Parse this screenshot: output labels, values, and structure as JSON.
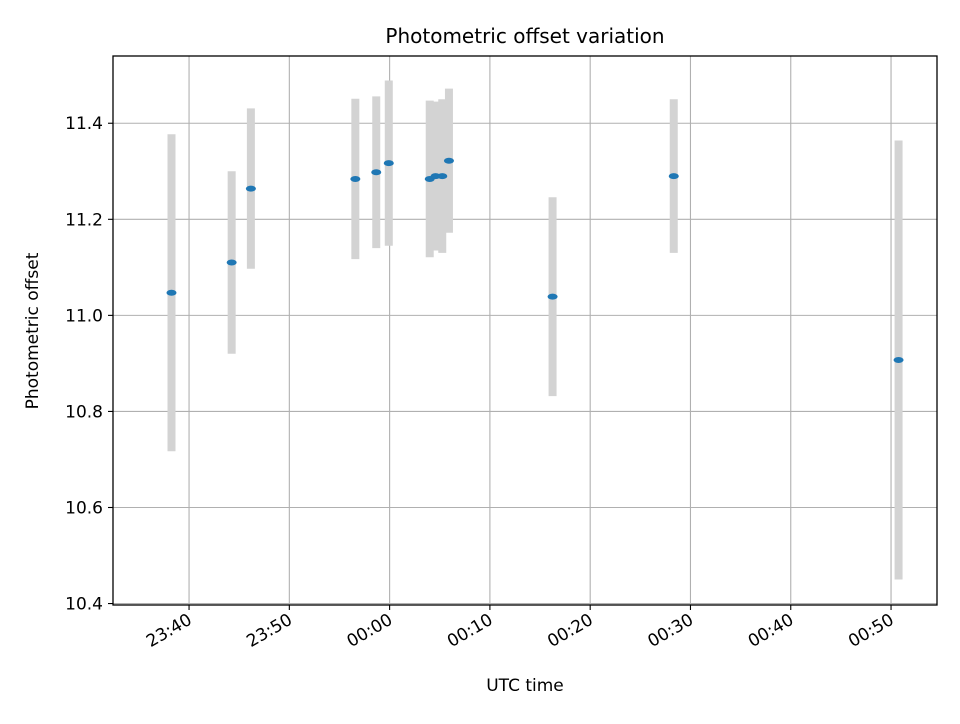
{
  "chart_data": {
    "type": "scatter",
    "title": "Photometric offset variation",
    "xlabel": "UTC time",
    "ylabel": "Photometric offset",
    "x_axis_type": "time",
    "xlim": [
      "23:32:25",
      "00:54:35"
    ],
    "ylim": [
      10.397,
      11.54
    ],
    "grid": true,
    "x_ticks": [
      "23:40",
      "23:50",
      "00:00",
      "00:10",
      "00:20",
      "00:30",
      "00:40",
      "00:50"
    ],
    "y_ticks": [
      "10.4",
      "10.6",
      "10.8",
      "11.0",
      "11.2",
      "11.4"
    ],
    "colors": {
      "marker": "#1f77b4",
      "errorbar": "#d3d3d3",
      "grid": "#b0b0b0",
      "axes": "#000000"
    },
    "series": [
      {
        "points": [
          {
            "t": "23:38:15",
            "y": 11.047,
            "err": 0.33
          },
          {
            "t": "23:44:15",
            "y": 11.11,
            "err": 0.19
          },
          {
            "t": "23:46:10",
            "y": 11.264,
            "err": 0.167
          },
          {
            "t": "23:56:35",
            "y": 11.284,
            "err": 0.167
          },
          {
            "t": "23:58:40",
            "y": 11.298,
            "err": 0.158
          },
          {
            "t": "23:59:55",
            "y": 11.317,
            "err": 0.172
          },
          {
            "t": "00:04:00",
            "y": 11.284,
            "err": 0.163
          },
          {
            "t": "00:04:35",
            "y": 11.29,
            "err": 0.155
          },
          {
            "t": "00:05:15",
            "y": 11.29,
            "err": 0.16
          },
          {
            "t": "00:05:55",
            "y": 11.322,
            "err": 0.15
          },
          {
            "t": "00:16:15",
            "y": 11.039,
            "err": 0.207
          },
          {
            "t": "00:28:20",
            "y": 11.29,
            "err": 0.16
          },
          {
            "t": "00:50:45",
            "y": 10.907,
            "err": 0.457
          }
        ]
      }
    ]
  }
}
